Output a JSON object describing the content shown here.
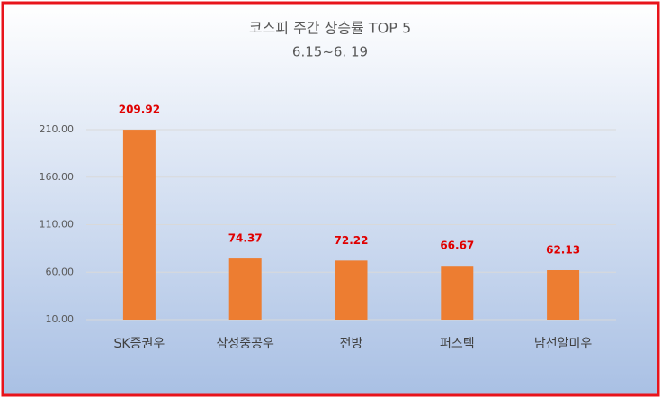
{
  "chart_data": {
    "type": "bar",
    "title": "코스피 주간 상승률 TOP 5",
    "subtitle": "6.15~6. 19",
    "categories": [
      "SK증권우",
      "삼성중공우",
      "전방",
      "퍼스텍",
      "남선알미우"
    ],
    "values": [
      209.92,
      74.37,
      72.22,
      66.67,
      62.13
    ],
    "color": "#ed7d31",
    "value_label_color": "#e00000",
    "ylim": [
      10,
      210
    ],
    "yticks": [
      {
        "value": 10,
        "label": "10.00"
      },
      {
        "value": 60,
        "label": "60.00"
      },
      {
        "value": 110,
        "label": "110.00"
      },
      {
        "value": 160,
        "label": "160.00"
      },
      {
        "value": 210,
        "label": "210.00"
      }
    ],
    "grid": true
  }
}
